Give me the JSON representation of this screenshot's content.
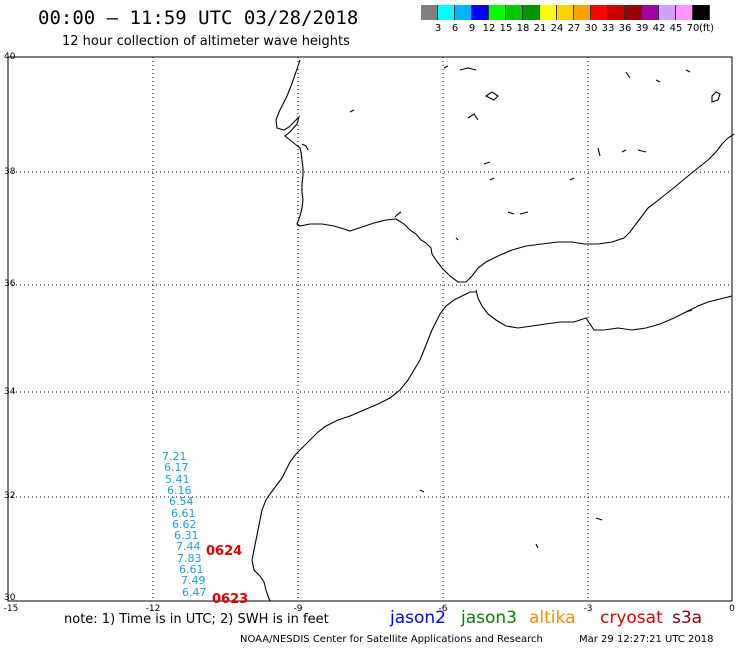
{
  "title": "00:00 – 11:59 UTC 03/28/2018",
  "subtitle": "12 hour collection of altimeter wave heights",
  "colorbar": {
    "unit": "(ft)",
    "labels": [
      "3",
      "6",
      "9",
      "12",
      "15",
      "18",
      "21",
      "24",
      "27",
      "30",
      "33",
      "36",
      "39",
      "42",
      "45",
      "70"
    ],
    "colors": [
      "#7f7f7f",
      "#00ffff",
      "#00b4ff",
      "#0000ff",
      "#00ff00",
      "#00c800",
      "#009600",
      "#ffff00",
      "#ffd200",
      "#ffa000",
      "#ff0000",
      "#c80000",
      "#960000",
      "#a000a0",
      "#d2a0ff",
      "#ff96ff",
      "#000000"
    ]
  },
  "map": {
    "lat_labels": [
      "40",
      "38",
      "36",
      "34",
      "32",
      "30"
    ],
    "lon_labels": [
      "-15",
      "-12",
      "-9",
      "-6",
      "-3",
      "0"
    ],
    "coastline_color": "#000000",
    "grid": "dotted"
  },
  "observations": {
    "color": "#1ea0d6",
    "values": [
      "7.21",
      "6.17",
      "5.41",
      "6.16",
      "6.54",
      "6.61",
      "6.62",
      "6.31",
      "7.44",
      "7.83",
      "6.61",
      "7.49",
      "6.47"
    ]
  },
  "pass_ids": [
    {
      "id": "0624",
      "color": "#e00000"
    },
    {
      "id": "0623",
      "color": "#e00000"
    }
  ],
  "note": "note: 1) Time is in UTC; 2) SWH is in feet",
  "satellites": [
    {
      "name": "jason2",
      "color": "#0000ff"
    },
    {
      "name": "jason3",
      "color": "#008000"
    },
    {
      "name": "altika",
      "color": "#ff8c00"
    },
    {
      "name": "cryosat",
      "color": "#e00000"
    },
    {
      "name": "s3a",
      "color": "#8b0000"
    }
  ],
  "credit": "NOAA/NESDIS Center for Satellite Applications and Research",
  "timestamp": "Mar 29 12:27:21 UTC 2018"
}
